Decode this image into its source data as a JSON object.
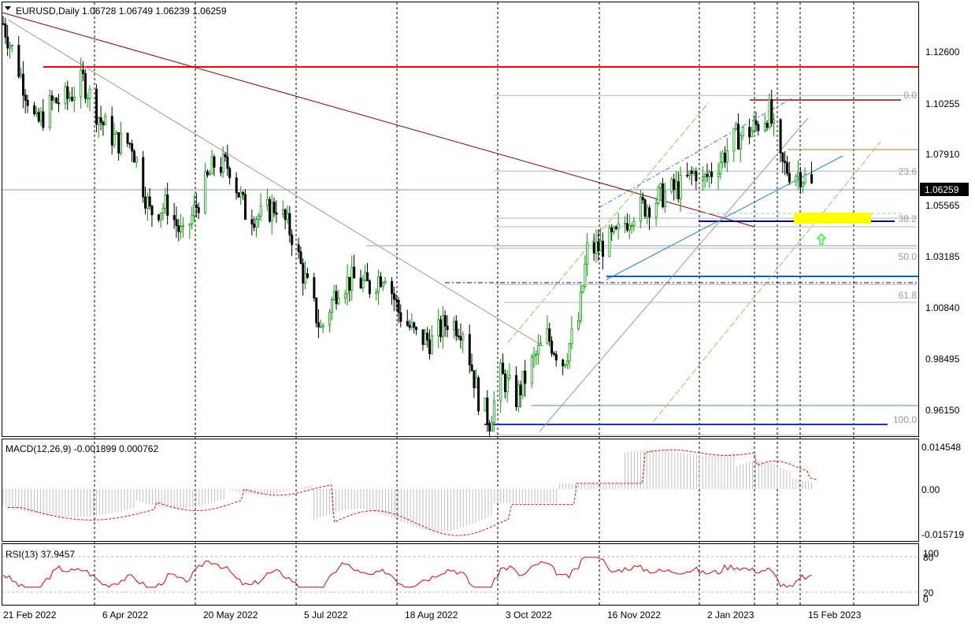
{
  "header": {
    "symbol_line": "EURUSD,Daily  1.06728 1.06749 1.06239 1.06259"
  },
  "price_axis": {
    "ticks": [
      "1.12600",
      "1.10255",
      "1.07910",
      "1.05565",
      "1.03185",
      "1.00840",
      "0.98495",
      "0.96150"
    ],
    "current_price": "1.06259",
    "range": [
      0.9538,
      1.144
    ]
  },
  "date_axis": {
    "labels": [
      "21 Feb 2022",
      "6 Apr 2022",
      "20 May 2022",
      "5 Jul 2022",
      "18 Aug 2022",
      "3 Oct 2022",
      "16 Nov 2022",
      "2 Jan 2023",
      "15 Feb 2023"
    ]
  },
  "fibonacci": {
    "levels": [
      "0.0",
      "23.6",
      "38.2",
      "50.0",
      "61.8",
      "100.0"
    ],
    "prices": [
      1.1033,
      1.07,
      1.0492,
      1.036,
      1.02,
      0.9536
    ]
  },
  "macd": {
    "label": "MACD(12,26,9) -0.001899 0.000762",
    "ticks": [
      "0.014548",
      "0.00",
      "-0.015719"
    ]
  },
  "rsi": {
    "label": "RSI(13) 37.9457",
    "ticks": [
      "100",
      "80",
      "20",
      "0"
    ]
  },
  "colors": {
    "bull": "#00a000",
    "bear": "#000000",
    "resistance": "#ff0000",
    "trendline": "#800000",
    "support": "#0000a0",
    "zone": "#ffff00",
    "arrow": "#00ff00",
    "signal": "#ff0000",
    "histogram": "#c0c0c0"
  },
  "chart_data": [
    {
      "type": "candlestick",
      "title": "EURUSD,Daily",
      "ohlc_last": {
        "open": 1.06728,
        "high": 1.06749,
        "low": 1.06239,
        "close": 1.06259
      },
      "x_labels": [
        "21 Feb 2022",
        "6 Apr 2022",
        "20 May 2022",
        "5 Jul 2022",
        "18 Aug 2022",
        "3 Oct 2022",
        "16 Nov 2022",
        "2 Jan 2023",
        "15 Feb 2023"
      ],
      "ylim": [
        0.9538,
        1.144
      ],
      "close_path": [
        [
          "21 Feb 2022",
          1.135
        ],
        [
          "1 Mar 2022",
          1.112
        ],
        [
          "8 Mar 2022",
          1.09
        ],
        [
          "15 Mar 2022",
          1.1
        ],
        [
          "22 Mar 2022",
          1.102
        ],
        [
          "29 Mar 2022",
          1.11
        ],
        [
          "6 Apr 2022",
          1.092
        ],
        [
          "13 Apr 2022",
          1.083
        ],
        [
          "20 Apr 2022",
          1.082
        ],
        [
          "28 Apr 2022",
          1.052
        ],
        [
          "6 May 2022",
          1.055
        ],
        [
          "13 May 2022",
          1.04
        ],
        [
          "20 May 2022",
          1.057
        ],
        [
          "27 May 2022",
          1.073
        ],
        [
          "3 Jun 2022",
          1.072
        ],
        [
          "10 Jun 2022",
          1.052
        ],
        [
          "17 Jun 2022",
          1.05
        ],
        [
          "24 Jun 2022",
          1.055
        ],
        [
          "1 Jul 2022",
          1.042
        ],
        [
          "5 Jul 2022",
          1.028
        ],
        [
          "14 Jul 2022",
          1.0
        ],
        [
          "22 Jul 2022",
          1.02
        ],
        [
          "29 Jul 2022",
          1.022
        ],
        [
          "5 Aug 2022",
          1.019
        ],
        [
          "12 Aug 2022",
          1.026
        ],
        [
          "18 Aug 2022",
          1.008
        ],
        [
          "26 Aug 2022",
          0.997
        ],
        [
          "2 Sep 2022",
          0.995
        ],
        [
          "9 Sep 2022",
          1.004
        ],
        [
          "16 Sep 2022",
          1.001
        ],
        [
          "23 Sep 2022",
          0.97
        ],
        [
          "28 Sep 2022",
          0.96
        ],
        [
          "3 Oct 2022",
          0.98
        ],
        [
          "10 Oct 2022",
          0.97
        ],
        [
          "17 Oct 2022",
          0.985
        ],
        [
          "24 Oct 2022",
          0.997
        ],
        [
          "31 Oct 2022",
          0.986
        ],
        [
          "7 Nov 2022",
          1.004
        ],
        [
          "11 Nov 2022",
          1.035
        ],
        [
          "16 Nov 2022",
          1.036
        ],
        [
          "24 Nov 2022",
          1.041
        ],
        [
          "1 Dec 2022",
          1.052
        ],
        [
          "8 Dec 2022",
          1.055
        ],
        [
          "16 Dec 2022",
          1.06
        ],
        [
          "23 Dec 2022",
          1.063
        ],
        [
          "30 Dec 2022",
          1.07
        ],
        [
          "2 Jan 2023",
          1.065
        ],
        [
          "10 Jan 2023",
          1.075
        ],
        [
          "17 Jan 2023",
          1.085
        ],
        [
          "24 Jan 2023",
          1.088
        ],
        [
          "1 Feb 2023",
          1.096
        ],
        [
          "6 Feb 2023",
          1.073
        ],
        [
          "10 Feb 2023",
          1.07
        ],
        [
          "15 Feb 2023",
          1.069
        ],
        [
          "20 Feb 2023",
          1.063
        ]
      ]
    },
    {
      "type": "line",
      "title": "MACD(12,26,9)",
      "values_last": {
        "macd": -0.001899,
        "signal": 0.000762
      },
      "ylim": [
        -0.017,
        0.0155
      ]
    },
    {
      "type": "line",
      "title": "RSI(13)",
      "value_last": 37.9457,
      "ylim": [
        0,
        100
      ],
      "levels": [
        80,
        20
      ]
    }
  ]
}
